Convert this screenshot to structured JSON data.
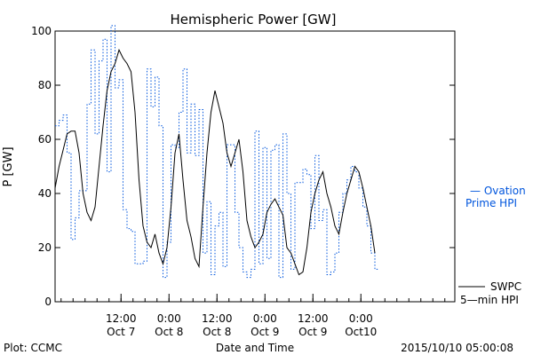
{
  "chart_data": {
    "type": "line",
    "title": "Hemispheric Power [GW]",
    "ylabel": "P [GW]",
    "xlabel": "Date and Time",
    "ylim": [
      0,
      100
    ],
    "xlim_hours": [
      0,
      100
    ],
    "yticks": [
      0,
      20,
      40,
      60,
      80,
      100
    ],
    "xticks": [
      {
        "hour": 16.5,
        "line1": "12:00",
        "line2": "Oct 7"
      },
      {
        "hour": 28.5,
        "line1": "0:00",
        "line2": "Oct 8"
      },
      {
        "hour": 40.5,
        "line1": "12:00",
        "line2": "Oct 8"
      },
      {
        "hour": 52.5,
        "line1": "0:00",
        "line2": "Oct 9"
      },
      {
        "hour": 64.5,
        "line1": "12:00",
        "line2": "Oct 9"
      },
      {
        "hour": 76.5,
        "line1": "0:00",
        "line2": "Oct10"
      }
    ],
    "series": [
      {
        "name": "SWPC 5-min HPI",
        "style": "solid",
        "color": "#000000",
        "x": [
          0,
          1,
          2,
          3,
          4,
          5,
          6,
          7,
          8,
          9,
          10,
          11,
          12,
          13,
          14,
          15,
          16,
          17,
          18,
          19,
          20,
          21,
          22,
          23,
          24,
          25,
          26,
          27,
          28,
          29,
          30,
          31,
          32,
          33,
          34,
          35,
          36,
          37,
          38,
          39,
          40,
          41,
          42,
          43,
          44,
          45,
          46,
          47,
          48,
          49,
          50,
          51,
          52,
          53,
          54,
          55,
          56,
          57,
          58,
          59,
          60,
          61,
          62,
          63,
          64,
          65,
          66,
          67,
          68,
          69,
          70,
          71,
          72,
          73,
          74,
          75,
          76,
          77,
          78,
          79,
          80
        ],
        "y": [
          42,
          50,
          56,
          62,
          63,
          63,
          55,
          40,
          33,
          30,
          35,
          50,
          65,
          78,
          85,
          88,
          93,
          90,
          88,
          85,
          70,
          45,
          28,
          22,
          20,
          25,
          18,
          14,
          20,
          35,
          55,
          62,
          45,
          30,
          24,
          16,
          13,
          35,
          55,
          70,
          78,
          72,
          66,
          55,
          50,
          55,
          60,
          48,
          30,
          24,
          20,
          22,
          25,
          33,
          36,
          38,
          35,
          32,
          20,
          18,
          14,
          10,
          11,
          20,
          33,
          40,
          45,
          48,
          40,
          35,
          28,
          25,
          33,
          40,
          45,
          50,
          48,
          42,
          35,
          28,
          18
        ]
      },
      {
        "name": "Ovation Prime HPI",
        "style": "dotted",
        "color": "#0055dd",
        "x": [
          0,
          1,
          2,
          3,
          4,
          5,
          6,
          7,
          8,
          9,
          10,
          11,
          12,
          13,
          14,
          15,
          16,
          17,
          18,
          19,
          20,
          21,
          22,
          23,
          24,
          25,
          26,
          27,
          28,
          29,
          30,
          31,
          32,
          33,
          34,
          35,
          36,
          37,
          38,
          39,
          40,
          41,
          42,
          43,
          44,
          45,
          46,
          47,
          48,
          49,
          50,
          51,
          52,
          53,
          54,
          55,
          56,
          57,
          58,
          59,
          60,
          61,
          62,
          63,
          64,
          65,
          66,
          67,
          68,
          69,
          70,
          71,
          72,
          73,
          74,
          75,
          76,
          77,
          78,
          79,
          80
        ],
        "y": [
          65,
          67,
          69,
          55,
          23,
          31,
          41,
          41,
          73,
          93,
          62,
          89,
          97,
          48,
          102,
          79,
          82,
          34,
          27,
          26,
          14,
          14,
          15,
          86,
          72,
          83,
          65,
          9,
          22,
          58,
          57,
          70,
          86,
          55,
          73,
          54,
          71,
          18,
          37,
          10,
          28,
          33,
          13,
          58,
          58,
          33,
          20,
          11,
          9,
          12,
          63,
          14,
          57,
          16,
          56,
          58,
          9,
          62,
          40,
          12,
          44,
          44,
          49,
          47,
          27,
          54,
          30,
          34,
          10,
          11,
          18,
          33,
          40,
          45,
          50,
          48,
          42,
          35,
          28,
          18,
          12
        ]
      }
    ],
    "legend": {
      "position": "right",
      "entries": [
        "Ovation Prime HPI",
        "SWPC 5-min HPI"
      ]
    }
  },
  "labels": {
    "title": "Hemispheric Power [GW]",
    "ylabel": "P [GW]",
    "xlabel": "Date and Time",
    "legend_ovation_line1": "— Ovation",
    "legend_ovation_line2": "Prime HPI",
    "legend_swpc_line1": "SWPC",
    "legend_swpc_line2": "5—min HPI",
    "plot_credit": "Plot: CCMC",
    "timestamp": "2015/10/10 05:00:08"
  },
  "colors": {
    "ovation": "#0055dd",
    "swpc": "#000000",
    "axis": "#000000"
  }
}
